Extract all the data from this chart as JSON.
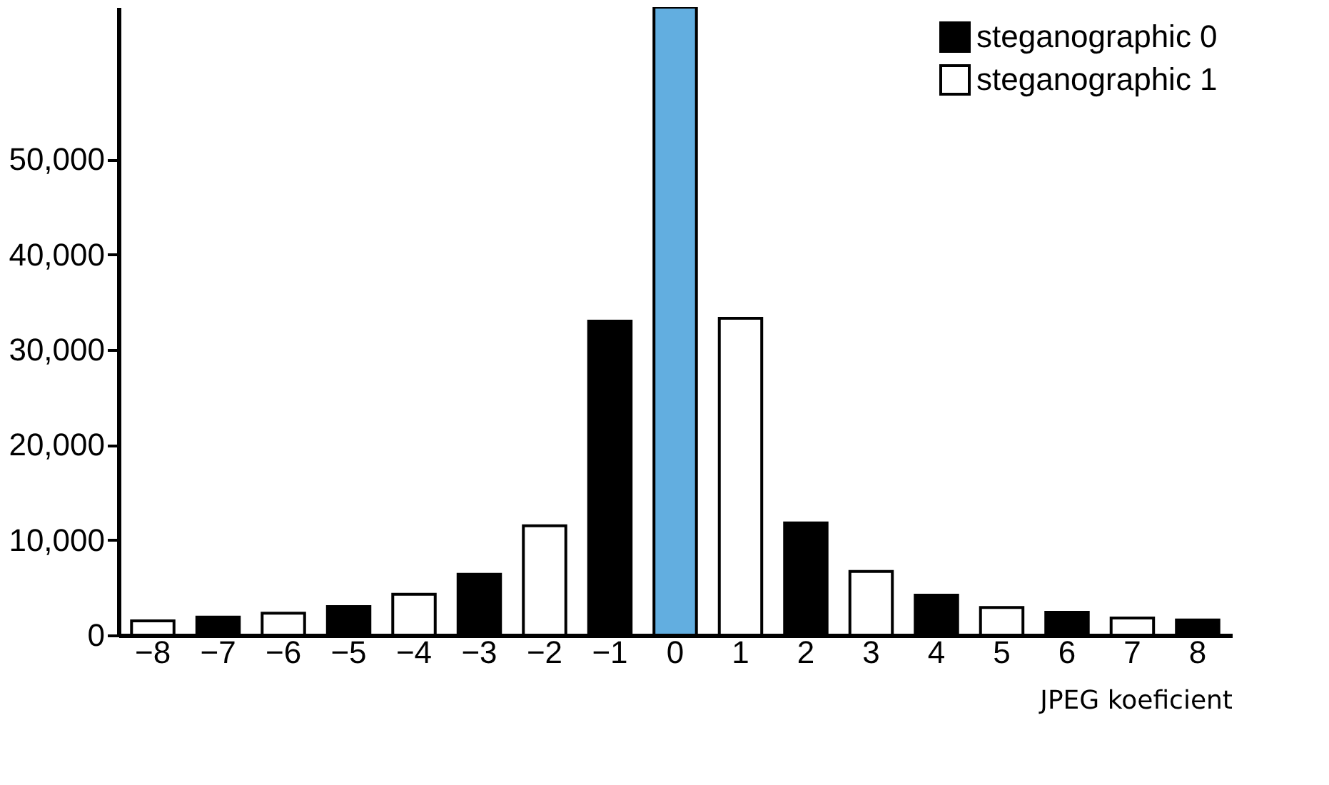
{
  "chart_data": {
    "type": "bar",
    "xlabel": "JPEG koeficient",
    "categories": [
      "−8",
      "−7",
      "−6",
      "−5",
      "−4",
      "−3",
      "−2",
      "−1",
      "0",
      "1",
      "2",
      "3",
      "4",
      "5",
      "6",
      "7",
      "8"
    ],
    "series": [
      {
        "name": "steganographic 0",
        "color": "#000000",
        "values": [
          null,
          1900,
          null,
          3000,
          null,
          6400,
          null,
          33000,
          null,
          null,
          11800,
          null,
          4200,
          null,
          2400,
          null,
          1600
        ]
      },
      {
        "name": "steganographic 1",
        "color": "#ffffff",
        "values": [
          1500,
          null,
          2300,
          null,
          4300,
          null,
          11500,
          null,
          null,
          33300,
          null,
          6700,
          null,
          2900,
          null,
          1800,
          null
        ]
      },
      {
        "color": "#62aee0",
        "values": [
          null,
          null,
          null,
          null,
          null,
          null,
          null,
          null,
          66000,
          null,
          null,
          null,
          null,
          null,
          null,
          null,
          null
        ]
      }
    ],
    "ylim": [
      0,
      66000
    ],
    "yticks": [
      0,
      {
        "value": 10000,
        "label": "10,000"
      },
      {
        "value": 20000,
        "label": "20,000"
      },
      {
        "value": 30000,
        "label": "30,000"
      },
      {
        "value": 40000,
        "label": "40,000"
      },
      {
        "value": 50000,
        "label": "50,000"
      }
    ],
    "grid": false,
    "legend": "top right"
  }
}
